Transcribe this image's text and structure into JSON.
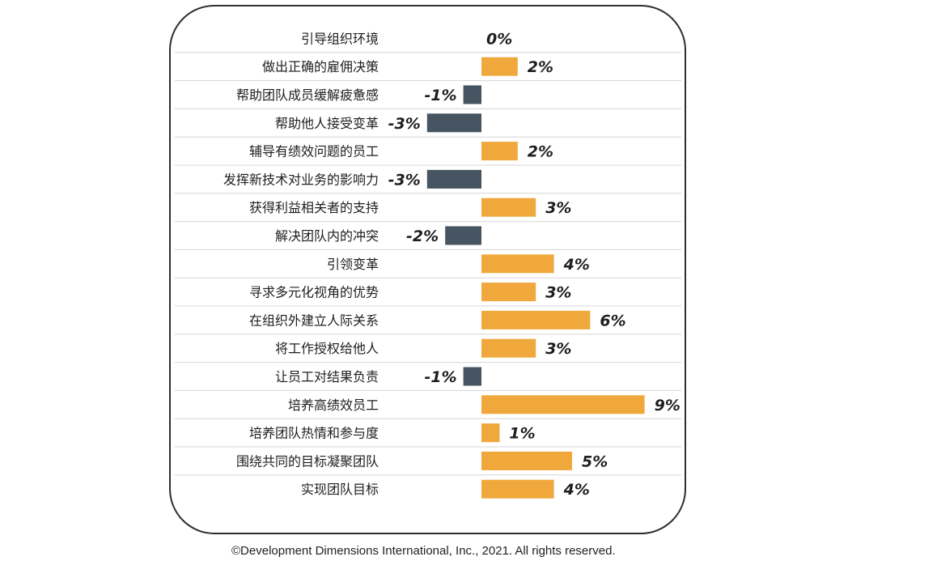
{
  "chart_data": {
    "type": "bar",
    "orientation": "horizontal",
    "categories": [
      "引导组织环境",
      "做出正确的雇佣决策",
      "帮助团队成员缓解疲惫感",
      "帮助他人接受变革",
      "辅导有绩效问题的员工",
      "发挥新技术对业务的影响力",
      "获得利益相关者的支持",
      "解决团队内的冲突",
      "引领变革",
      "寻求多元化视角的优势",
      "在组织外建立人际关系",
      "将工作授权给他人",
      "让员工对结果负责",
      "培养高绩效员工",
      "培养团队热情和参与度",
      "围绕共同的目标凝聚团队",
      "实现团队目标"
    ],
    "values": [
      0,
      2,
      -1,
      -3,
      2,
      -3,
      3,
      -2,
      4,
      3,
      6,
      3,
      -1,
      9,
      1,
      5,
      4
    ],
    "value_labels": [
      "0%",
      "2%",
      "-1%",
      "-3%",
      "2%",
      "-3%",
      "3%",
      "-2%",
      "4%",
      "3%",
      "6%",
      "3%",
      "-1%",
      "9%",
      "1%",
      "5%",
      "4%"
    ],
    "unit": "%",
    "colors": {
      "positive": "#F0A83C",
      "negative": "#475461"
    },
    "gridlines": true,
    "legend": "none"
  },
  "footer": {
    "copyright": "©Development Dimensions International, Inc., 2021. All rights reserved."
  }
}
